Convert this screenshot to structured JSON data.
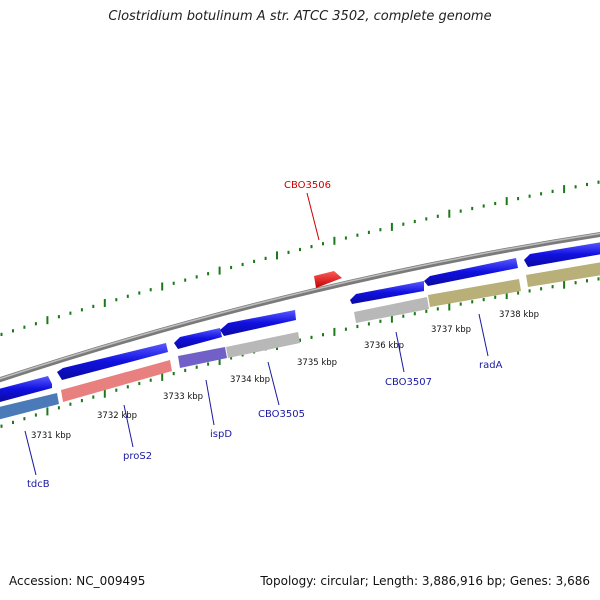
{
  "title": "Clostridium botulinum A str. ATCC 3502, complete genome",
  "footer": {
    "accession": "Accession: NC_009495",
    "summary": "Topology: circular; Length: 3,886,916 bp; Genes: 3,686"
  },
  "colors": {
    "forward_gene": "#1010e0",
    "highlight_gene": "#e01010",
    "backbone": "#8a8a8a",
    "tick": "#1a7a1a",
    "gene_label": "#1a1aa0",
    "highlight_label": "#cc0000"
  },
  "kbp_labels": [
    "3731 kbp",
    "3732 kbp",
    "3733 kbp",
    "3734 kbp",
    "3735 kbp",
    "3736 kbp",
    "3737 kbp",
    "3738 kbp"
  ],
  "gene_labels": [
    "tdcB",
    "proS2",
    "ispD",
    "CBO3505",
    "CBO3506",
    "CBO3507",
    "radA"
  ],
  "reverse_feature_colors": [
    "#4a7ab8",
    "#e88080",
    "#7060c8",
    "#b8b8b8",
    "#b8b8b8",
    "#b8b8b8",
    "#b8b078",
    "#b8b078"
  ]
}
